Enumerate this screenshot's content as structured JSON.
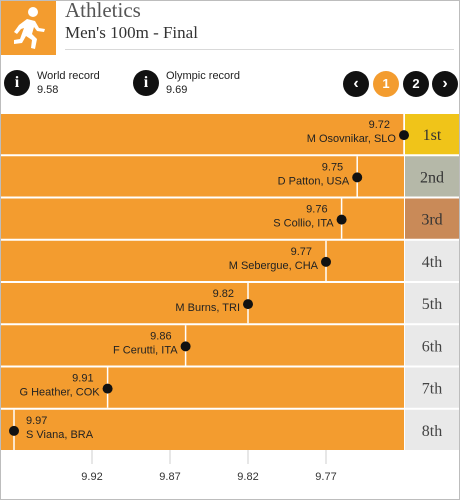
{
  "header": {
    "icon": "runner-icon",
    "title": "Athletics",
    "subtitle": "Men's 100m - Final"
  },
  "records": [
    {
      "label": "World record",
      "value": "9.58",
      "icon": "info-icon"
    },
    {
      "label": "Olympic record",
      "value": "9.69",
      "icon": "info-icon"
    }
  ],
  "pagination": {
    "prev_label": "‹",
    "next_label": "›",
    "pages": [
      "1",
      "2"
    ],
    "current": "1"
  },
  "colors": {
    "accent": "#f39c2f",
    "gold": "#f0c419",
    "silver": "#b5b8a8",
    "bronze": "#c98a58",
    "place": "#e9e9e9"
  },
  "chart_data": {
    "type": "bar",
    "categories": [
      "1st",
      "2nd",
      "3rd",
      "4th",
      "5th",
      "6th",
      "7th",
      "8th"
    ],
    "athletes": [
      "M Osovnikar, SLO",
      "D Patton, USA",
      "S Collio, ITA",
      "M Sebergue, CHA",
      "M Burns, TRI",
      "F Cerutti, ITA",
      "G Heather, COK",
      "S Viana, BRA"
    ],
    "values": [
      9.72,
      9.75,
      9.76,
      9.77,
      9.82,
      9.86,
      9.91,
      9.97
    ],
    "x_axis": {
      "ticks": [
        9.92,
        9.87,
        9.82,
        9.77
      ],
      "reversed": true
    }
  }
}
